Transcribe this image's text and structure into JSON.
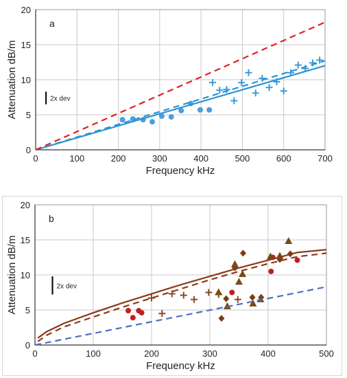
{
  "chart_data": [
    {
      "type": "scatter",
      "panel_label": "a",
      "xlabel": "Frequency  kHz",
      "ylabel": "Attenuation  dB/m",
      "xlim": [
        0,
        700
      ],
      "ylim": [
        0,
        20
      ],
      "x_ticks": [
        0,
        100,
        200,
        300,
        400,
        500,
        600,
        700
      ],
      "y_ticks": [
        0,
        5,
        10,
        15,
        20
      ],
      "grid": true,
      "annotation": "2x dev",
      "annotation_bar": {
        "x": 25,
        "y_from": 6.5,
        "y_to": 8.3
      },
      "series": [
        {
          "marker": "circle",
          "color": "#4a9fde",
          "points": [
            [
              210,
              4.3
            ],
            [
              235,
              4.4
            ],
            [
              260,
              4.3
            ],
            [
              282,
              4.0
            ],
            [
              305,
              4.8
            ],
            [
              328,
              4.7
            ],
            [
              352,
              5.6
            ],
            [
              375,
              6.6
            ],
            [
              398,
              5.7
            ],
            [
              420,
              5.7
            ]
          ]
        },
        {
          "marker": "plus",
          "color": "#3a9ad9",
          "points": [
            [
              428,
              9.6
            ],
            [
              445,
              8.5
            ],
            [
              462,
              8.6
            ],
            [
              480,
              7.0
            ],
            [
              498,
              9.6
            ],
            [
              515,
              11.0
            ],
            [
              532,
              8.1
            ],
            [
              548,
              10.2
            ],
            [
              565,
              8.9
            ],
            [
              583,
              9.7
            ],
            [
              600,
              8.4
            ],
            [
              617,
              11.0
            ],
            [
              635,
              12.1
            ],
            [
              652,
              11.6
            ],
            [
              670,
              12.4
            ],
            [
              687,
              12.8
            ]
          ]
        },
        {
          "style": "solid",
          "color": "#2b94d4",
          "line": [
            [
              0,
              0
            ],
            [
              700,
              12.0
            ]
          ]
        },
        {
          "style": "dashed",
          "color": "#2b94d4",
          "line": [
            [
              0,
              0
            ],
            [
              700,
              12.7
            ]
          ]
        },
        {
          "style": "dashed",
          "color": "#e02020",
          "line": [
            [
              0,
              0
            ],
            [
              700,
              18.2
            ]
          ]
        }
      ]
    },
    {
      "type": "scatter",
      "panel_label": "b",
      "xlabel": "Frequency  kHz",
      "ylabel": "Attenuation  dB/m",
      "xlim": [
        0,
        500
      ],
      "ylim": [
        0,
        20
      ],
      "x_ticks": [
        0,
        100,
        200,
        300,
        400,
        500
      ],
      "y_ticks": [
        0,
        5,
        10,
        15,
        20
      ],
      "grid": true,
      "annotation": "2x dev",
      "annotation_bar": {
        "x": 30,
        "y_from": 7.2,
        "y_to": 9.8
      },
      "series": [
        {
          "marker": "circle",
          "color": "#c02020",
          "points": [
            [
              160,
              4.9
            ],
            [
              168,
              3.9
            ],
            [
              178,
              4.9
            ],
            [
              183,
              4.6
            ],
            [
              338,
              7.5
            ],
            [
              405,
              10.5
            ],
            [
              408,
              12.5
            ],
            [
              450,
              12.1
            ]
          ]
        },
        {
          "marker": "plus",
          "color": "#8b4a2a",
          "points": [
            [
              200,
              6.7
            ],
            [
              218,
              4.5
            ],
            [
              235,
              7.3
            ],
            [
              255,
              7.1
            ],
            [
              273,
              6.5
            ],
            [
              298,
              7.5
            ],
            [
              315,
              7.2
            ],
            [
              348,
              6.5
            ]
          ]
        },
        {
          "marker": "diamond",
          "color": "#7a3d12",
          "points": [
            [
              320,
              3.8
            ],
            [
              328,
              6.6
            ],
            [
              343,
              11.0
            ],
            [
              357,
              13.1
            ],
            [
              373,
              6.8
            ],
            [
              388,
              6.8
            ],
            [
              420,
              12.2
            ],
            [
              438,
              13.0
            ]
          ]
        },
        {
          "marker": "triangle",
          "color": "#7a4a10",
          "points": [
            [
              315,
              7.5
            ],
            [
              330,
              5.5
            ],
            [
              343,
              11.5
            ],
            [
              350,
              9.0
            ],
            [
              356,
              10.1
            ],
            [
              374,
              5.9
            ],
            [
              387,
              6.5
            ],
            [
              404,
              12.6
            ],
            [
              420,
              12.7
            ],
            [
              435,
              14.8
            ]
          ]
        },
        {
          "style": "solid",
          "color": "#8b3a1a",
          "curve": [
            [
              5,
              1.0
            ],
            [
              20,
              1.9
            ],
            [
              50,
              3.1
            ],
            [
              100,
              4.6
            ],
            [
              150,
              6.0
            ],
            [
              200,
              7.3
            ],
            [
              250,
              8.6
            ],
            [
              300,
              9.8
            ],
            [
              350,
              11.0
            ],
            [
              400,
              12.1
            ],
            [
              450,
              13.2
            ],
            [
              500,
              13.6
            ]
          ]
        },
        {
          "style": "dashed",
          "color": "#8b3a1a",
          "curve": [
            [
              5,
              0.5
            ],
            [
              20,
              1.4
            ],
            [
              50,
              2.6
            ],
            [
              100,
              4.0
            ],
            [
              150,
              5.4
            ],
            [
              200,
              6.7
            ],
            [
              250,
              8.0
            ],
            [
              300,
              9.3
            ],
            [
              350,
              10.5
            ],
            [
              400,
              11.6
            ],
            [
              450,
              12.6
            ],
            [
              500,
              13.1
            ]
          ]
        },
        {
          "style": "dashed",
          "color": "#4a6ec0",
          "line": [
            [
              0,
              0
            ],
            [
              500,
              8.3
            ]
          ]
        }
      ]
    }
  ]
}
